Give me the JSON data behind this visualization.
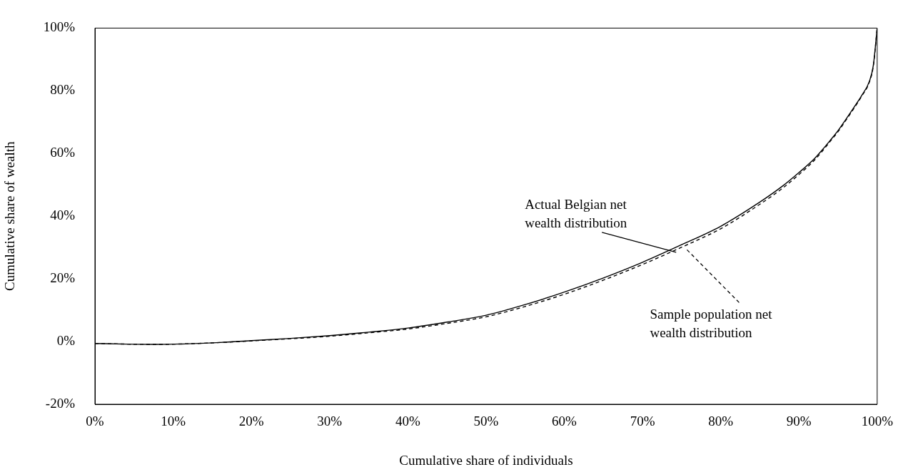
{
  "chart_data": {
    "type": "line",
    "xlabel": "Cumulative share of individuals",
    "ylabel": "Cumulative share of wealth",
    "x": [
      0,
      4,
      8,
      12,
      16,
      20,
      25,
      30,
      35,
      40,
      45,
      50,
      55,
      60,
      65,
      70,
      75,
      80,
      85,
      88,
      90,
      92,
      93,
      94,
      95,
      96,
      97,
      98,
      99,
      99.5,
      100
    ],
    "series": [
      {
        "color": "#000000",
        "line_style": "solid",
        "values": [
          -0.6,
          -0.8,
          -0.9,
          -0.7,
          -0.3,
          0.3,
          1.0,
          1.9,
          3.0,
          4.3,
          6.2,
          8.4,
          11.8,
          15.8,
          20.3,
          25.3,
          30.9,
          36.8,
          44.5,
          49.8,
          53.9,
          58.4,
          61.2,
          64.2,
          67.3,
          70.9,
          74.6,
          78.4,
          83.0,
          88.0,
          100
        ]
      },
      {
        "color": "#000000",
        "line_style": "dashed",
        "values": [
          -0.6,
          -0.8,
          -0.9,
          -0.7,
          -0.3,
          0.2,
          0.9,
          1.7,
          2.8,
          4.0,
          5.8,
          7.9,
          11.2,
          15.1,
          19.6,
          24.6,
          30.1,
          36.0,
          43.8,
          49.1,
          53.3,
          57.9,
          60.8,
          63.9,
          67.0,
          70.6,
          74.3,
          78.2,
          82.8,
          87.8,
          100
        ]
      }
    ],
    "annotations": [
      {
        "text": "Actual Belgian net wealth distribution",
        "x": 74.3,
        "y": 28.5
      },
      {
        "text": "Sample population net wealth distribution",
        "x": 75.6,
        "y": 29.5
      }
    ],
    "xlim": [
      0,
      100
    ],
    "xticks": [
      {
        "value": 0,
        "label": "0%"
      },
      {
        "value": 10,
        "label": "10%"
      },
      {
        "value": 20,
        "label": "20%"
      },
      {
        "value": 30,
        "label": "30%"
      },
      {
        "value": 40,
        "label": "40%"
      },
      {
        "value": 50,
        "label": "50%"
      },
      {
        "value": 60,
        "label": "60%"
      },
      {
        "value": 70,
        "label": "70%"
      },
      {
        "value": 80,
        "label": "80%"
      },
      {
        "value": 90,
        "label": "90%"
      },
      {
        "value": 100,
        "label": "100%"
      }
    ],
    "ylim": [
      -20,
      100
    ],
    "yticks": [
      {
        "value": -20,
        "label": "-20%"
      },
      {
        "value": 0,
        "label": "0%"
      },
      {
        "value": 20,
        "label": "20%"
      },
      {
        "value": 40,
        "label": "40%"
      },
      {
        "value": 60,
        "label": "60%"
      },
      {
        "value": 80,
        "label": "80%"
      },
      {
        "value": 100,
        "label": "100%"
      }
    ],
    "grid": false,
    "legend": false,
    "marker": "none"
  }
}
